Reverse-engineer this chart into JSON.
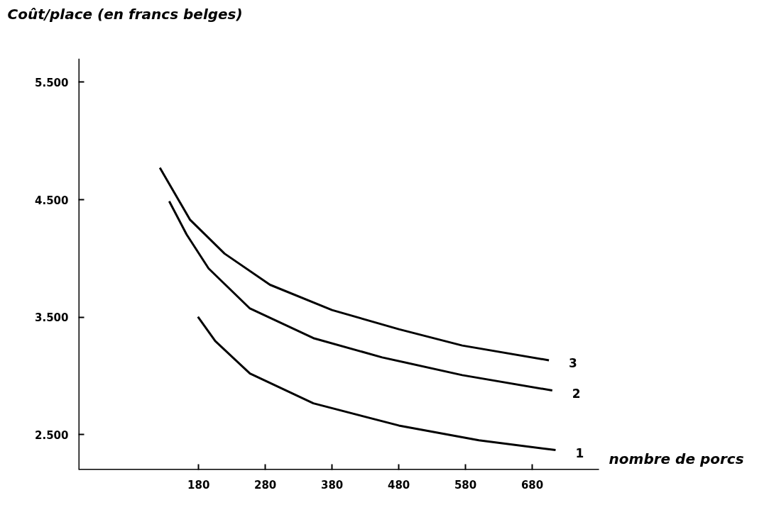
{
  "chart_data": {
    "type": "line",
    "ylabel": "Coût/place (en francs belges)",
    "xlabel": "nombre de porcs",
    "series": [
      {
        "name": "1",
        "color": "#000000",
        "x": [
          179,
          205,
          257,
          352,
          480,
          600,
          715
        ],
        "values": [
          3503,
          3297,
          3020,
          2767,
          2578,
          2452,
          2369
        ]
      },
      {
        "name": "2",
        "color": "#000000",
        "x": [
          136,
          162,
          195,
          257,
          352,
          455,
          575,
          710
        ],
        "values": [
          4487,
          4205,
          3915,
          3574,
          3322,
          3158,
          3007,
          2876
        ]
      },
      {
        "name": "3",
        "color": "#000000",
        "x": [
          122,
          167,
          219,
          287,
          380,
          480,
          575,
          705
        ],
        "values": [
          4772,
          4331,
          4041,
          3776,
          3561,
          3398,
          3259,
          3133
        ]
      }
    ],
    "xlim": [
      0,
      780
    ],
    "ylim": [
      2200,
      5700
    ],
    "xticks": [
      180,
      280,
      380,
      480,
      580,
      680
    ],
    "yticks": [
      {
        "value": 2500,
        "label": "2.500"
      },
      {
        "value": 3500,
        "label": "3.500"
      },
      {
        "value": 4500,
        "label": "4.500"
      },
      {
        "value": 5500,
        "label": "5.500"
      }
    ],
    "grid": false,
    "legend": false,
    "marker": "none",
    "line_style": "solid"
  }
}
